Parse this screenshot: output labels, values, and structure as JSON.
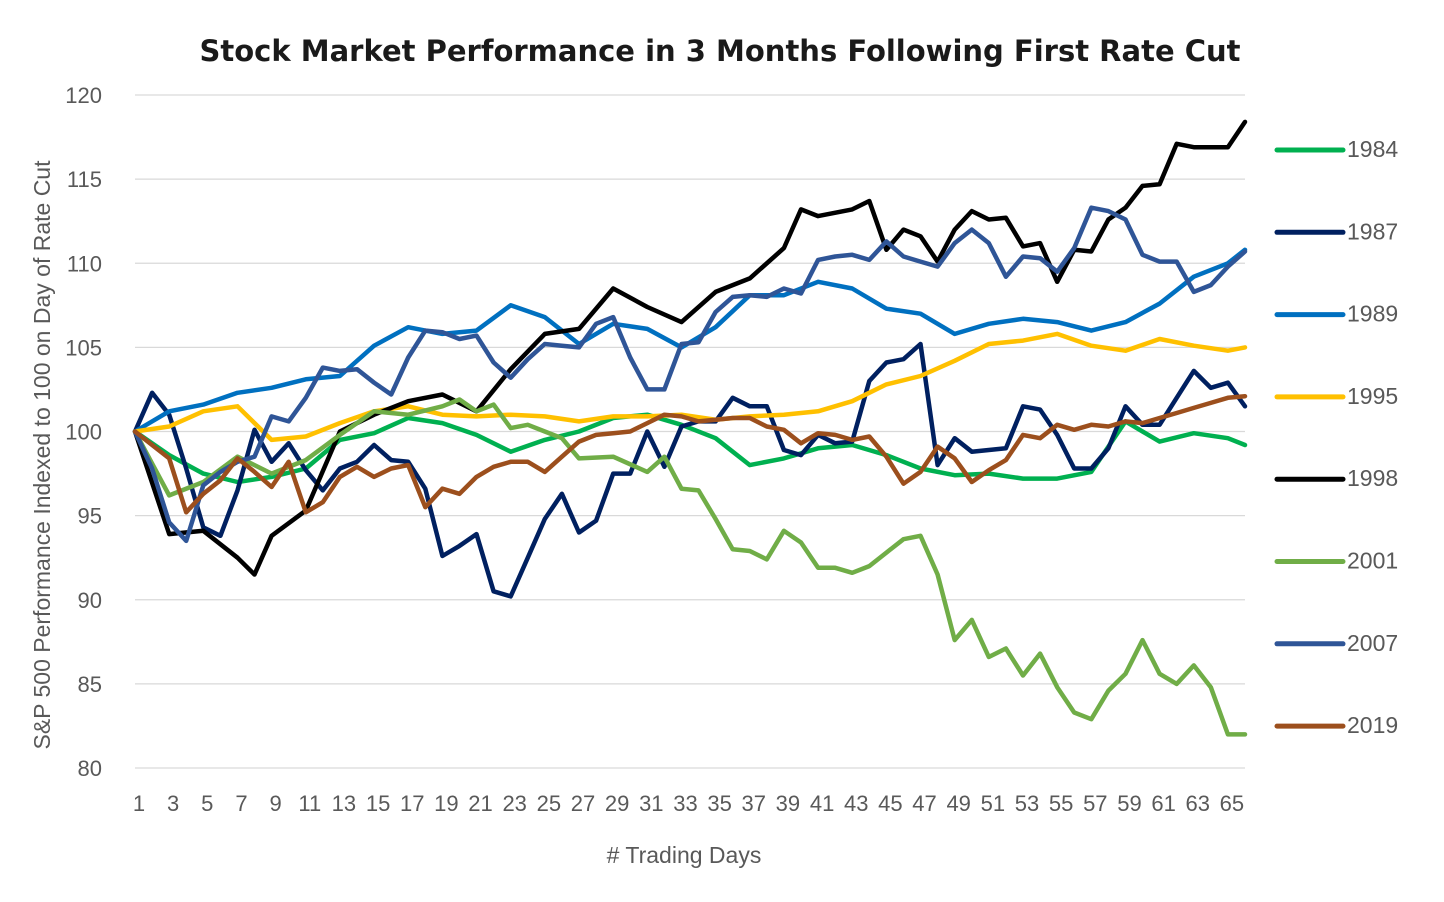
{
  "chart_data": {
    "type": "line",
    "title": "Stock Market Performance in 3 Months Following First Rate Cut",
    "xlabel": "# Trading Days",
    "ylabel": "S&P 500 Performance Indexed to 100 on Day of Rate Cut",
    "ylim": [
      80,
      120
    ],
    "yticks": [
      "120",
      "115",
      "110",
      "105",
      "100",
      "95",
      "90",
      "85",
      "80"
    ],
    "xlim": [
      1,
      66
    ],
    "xticks": [
      "1",
      "3",
      "5",
      "7",
      "9",
      "11",
      "13",
      "15",
      "17",
      "19",
      "21",
      "23",
      "25",
      "27",
      "29",
      "31",
      "33",
      "35",
      "37",
      "39",
      "41",
      "43",
      "45",
      "47",
      "49",
      "51",
      "53",
      "55",
      "57",
      "59",
      "61",
      "63",
      "65"
    ],
    "grid": true,
    "legend_position": "right",
    "series": [
      {
        "name": "1984",
        "color": "#00b050",
        "x": [
          1,
          3,
          5,
          7,
          9,
          11,
          13,
          15,
          17,
          19,
          21,
          23,
          25,
          27,
          29,
          31,
          33,
          35,
          37,
          39,
          41,
          43,
          45,
          47,
          49,
          51,
          53,
          55,
          57,
          59,
          61,
          63,
          65,
          66
        ],
        "values": [
          100,
          98.6,
          97.5,
          97.0,
          97.3,
          97.8,
          99.5,
          99.9,
          100.8,
          100.5,
          99.8,
          98.8,
          99.5,
          100.0,
          100.8,
          101.0,
          100.4,
          99.6,
          98.0,
          98.4,
          99.0,
          99.2,
          98.6,
          97.8,
          97.4,
          97.5,
          97.2,
          97.2,
          97.6,
          100.6,
          99.4,
          99.9,
          99.6,
          99.2
        ]
      },
      {
        "name": "1987",
        "color": "#002060",
        "x": [
          1,
          2,
          3,
          4,
          5,
          6,
          7,
          8,
          9,
          10,
          11,
          12,
          13,
          14,
          15,
          16,
          17,
          18,
          19,
          20,
          21,
          22,
          23,
          24,
          25,
          26,
          27,
          28,
          29,
          30,
          31,
          32,
          33,
          34,
          35,
          36,
          37,
          38,
          39,
          40,
          41,
          42,
          43,
          44,
          45,
          46,
          47,
          48,
          49,
          50,
          51,
          52,
          53,
          54,
          55,
          56,
          57,
          58,
          59,
          60,
          61,
          62,
          63,
          64,
          65,
          66
        ],
        "values": [
          100,
          102.3,
          101,
          97.8,
          94.3,
          93.8,
          96.5,
          100.1,
          98.2,
          99.3,
          97.7,
          96.5,
          97.8,
          98.2,
          99.2,
          98.3,
          98.2,
          96.6,
          92.6,
          93.2,
          93.9,
          90.5,
          90.2,
          92.5,
          94.8,
          96.3,
          94.0,
          94.7,
          97.5,
          97.5,
          100.0,
          97.9,
          100.3,
          100.6,
          100.6,
          102.0,
          101.5,
          101.5,
          98.9,
          98.6,
          99.8,
          99.3,
          99.4,
          103.0,
          104.1,
          104.3,
          105.2,
          98.0,
          99.6,
          98.8,
          98.9,
          99.0,
          101.5,
          101.3,
          99.8,
          97.8,
          97.8,
          99.0,
          101.5,
          100.4,
          100.4,
          102.0,
          103.6,
          102.6,
          102.9,
          101.5
        ]
      },
      {
        "name": "1989",
        "color": "#0070c0",
        "x": [
          1,
          3,
          5,
          7,
          9,
          11,
          13,
          15,
          17,
          19,
          21,
          23,
          25,
          27,
          29,
          31,
          33,
          35,
          37,
          39,
          41,
          43,
          45,
          47,
          49,
          51,
          53,
          55,
          57,
          59,
          61,
          63,
          65,
          66
        ],
        "values": [
          100,
          101.2,
          101.6,
          102.3,
          102.6,
          103.1,
          103.3,
          105.1,
          106.2,
          105.8,
          106.0,
          107.5,
          106.8,
          105.2,
          106.4,
          106.1,
          105.0,
          106.2,
          108.1,
          108.1,
          108.9,
          108.5,
          107.3,
          107.0,
          105.8,
          106.4,
          106.7,
          106.5,
          106.0,
          106.5,
          107.6,
          109.2,
          110.0,
          110.8
        ]
      },
      {
        "name": "1995",
        "color": "#ffc000",
        "x": [
          1,
          3,
          5,
          7,
          9,
          11,
          13,
          15,
          17,
          19,
          21,
          23,
          25,
          27,
          29,
          31,
          33,
          35,
          37,
          39,
          41,
          43,
          45,
          47,
          49,
          51,
          53,
          55,
          57,
          59,
          61,
          63,
          65,
          66
        ],
        "values": [
          100,
          100.3,
          101.2,
          101.5,
          99.5,
          99.7,
          100.5,
          101.2,
          101.5,
          101.0,
          100.9,
          101.0,
          100.9,
          100.6,
          100.9,
          100.9,
          101.0,
          100.7,
          100.9,
          101.0,
          101.2,
          101.8,
          102.8,
          103.3,
          104.2,
          105.2,
          105.4,
          105.8,
          105.1,
          104.8,
          105.5,
          105.1,
          104.8,
          105.0
        ]
      },
      {
        "name": "1998",
        "color": "#000000",
        "x": [
          1,
          3,
          5,
          7,
          8,
          9,
          11,
          13,
          15,
          17,
          19,
          21,
          23,
          25,
          27,
          29,
          31,
          33,
          35,
          37,
          39,
          40,
          41,
          43,
          44,
          45,
          46,
          47,
          48,
          49,
          50,
          51,
          52,
          53,
          54,
          55,
          56,
          57,
          58,
          59,
          60,
          61,
          62,
          63,
          64,
          65,
          66
        ],
        "values": [
          100,
          93.9,
          94.1,
          92.5,
          91.5,
          93.8,
          95.3,
          100.0,
          101.0,
          101.8,
          102.2,
          101.2,
          103.7,
          105.8,
          106.1,
          108.5,
          107.4,
          106.5,
          108.3,
          109.1,
          110.9,
          113.2,
          112.8,
          113.2,
          113.7,
          110.8,
          112.0,
          111.6,
          110.1,
          112.0,
          113.1,
          112.6,
          112.7,
          111.0,
          111.2,
          108.9,
          110.8,
          110.7,
          112.6,
          113.3,
          114.6,
          114.7,
          117.1,
          116.9,
          116.9,
          116.9,
          118.4
        ]
      },
      {
        "name": "2001",
        "color": "#70ad47",
        "x": [
          1,
          3,
          5,
          7,
          9,
          11,
          13,
          15,
          17,
          19,
          20,
          21,
          22,
          23,
          24,
          25,
          26,
          27,
          29,
          31,
          32,
          33,
          34,
          35,
          36,
          37,
          38,
          39,
          40,
          41,
          42,
          43,
          44,
          45,
          46,
          47,
          48,
          49,
          50,
          51,
          52,
          53,
          54,
          55,
          56,
          57,
          58,
          59,
          60,
          61,
          62,
          63,
          64,
          65,
          66
        ],
        "values": [
          100,
          96.2,
          97.0,
          98.5,
          97.5,
          98.3,
          99.8,
          101.2,
          101.0,
          101.5,
          101.9,
          101.2,
          101.6,
          100.2,
          100.4,
          100.0,
          99.6,
          98.4,
          98.5,
          97.6,
          98.5,
          96.6,
          96.5,
          94.8,
          93.0,
          92.9,
          92.4,
          94.1,
          93.4,
          91.9,
          91.9,
          91.6,
          92.0,
          92.8,
          93.6,
          93.8,
          91.5,
          87.6,
          88.8,
          86.6,
          87.1,
          85.5,
          86.8,
          84.8,
          83.3,
          82.9,
          84.6,
          85.6,
          87.6,
          85.6,
          85.0,
          86.1,
          84.8,
          82.0,
          82.0
        ]
      },
      {
        "name": "2007",
        "color": "#2f5597",
        "x": [
          1,
          2,
          3,
          4,
          5,
          6,
          7,
          8,
          9,
          10,
          11,
          12,
          13,
          14,
          15,
          16,
          17,
          18,
          19,
          20,
          21,
          22,
          23,
          24,
          25,
          26,
          27,
          28,
          29,
          30,
          31,
          32,
          33,
          34,
          35,
          36,
          37,
          38,
          39,
          40,
          41,
          42,
          43,
          44,
          45,
          46,
          47,
          48,
          49,
          50,
          51,
          52,
          53,
          54,
          55,
          56,
          57,
          58,
          59,
          60,
          61,
          62,
          63,
          64,
          65,
          66
        ],
        "values": [
          100,
          97.8,
          94.6,
          93.5,
          96.8,
          97.6,
          98.2,
          98.5,
          100.9,
          100.6,
          102.0,
          103.8,
          103.6,
          103.7,
          102.9,
          102.2,
          104.4,
          106.0,
          105.9,
          105.5,
          105.7,
          104.1,
          103.2,
          104.3,
          105.2,
          105.1,
          105.0,
          106.4,
          106.8,
          104.4,
          102.5,
          102.5,
          105.2,
          105.3,
          107.1,
          108.0,
          108.1,
          108.0,
          108.5,
          108.2,
          110.2,
          110.4,
          110.5,
          110.2,
          111.3,
          110.4,
          110.1,
          109.8,
          111.2,
          112.0,
          111.2,
          109.2,
          110.4,
          110.3,
          109.5,
          110.9,
          113.3,
          113.1,
          112.6,
          110.5,
          110.1,
          110.1,
          108.3,
          108.7,
          109.8,
          110.7
        ]
      },
      {
        "name": "2019",
        "color": "#9c4f1d",
        "x": [
          1,
          2,
          3,
          4,
          5,
          6,
          7,
          8,
          9,
          10,
          11,
          12,
          13,
          14,
          15,
          16,
          17,
          18,
          19,
          20,
          21,
          22,
          23,
          24,
          25,
          26,
          27,
          28,
          29,
          30,
          31,
          32,
          33,
          34,
          35,
          36,
          37,
          38,
          39,
          40,
          41,
          42,
          43,
          44,
          45,
          46,
          47,
          48,
          49,
          50,
          51,
          52,
          53,
          54,
          55,
          56,
          57,
          58,
          59,
          60,
          61,
          62,
          63,
          64,
          65,
          66
        ],
        "values": [
          100,
          99.2,
          98.4,
          95.2,
          96.3,
          97.1,
          98.4,
          97.6,
          96.7,
          98.2,
          95.2,
          95.8,
          97.3,
          97.9,
          97.3,
          97.8,
          98.0,
          95.5,
          96.6,
          96.3,
          97.3,
          97.9,
          98.2,
          98.2,
          97.6,
          98.5,
          99.4,
          99.8,
          99.9,
          100.0,
          100.5,
          101.0,
          100.9,
          100.6,
          100.7,
          100.8,
          100.8,
          100.3,
          100.1,
          99.3,
          99.9,
          99.8,
          99.5,
          99.7,
          98.5,
          96.9,
          97.6,
          99.1,
          98.4,
          97.0,
          97.7,
          98.3,
          99.8,
          99.6,
          100.4,
          100.1,
          100.4,
          100.3,
          100.6,
          100.5,
          100.8,
          101.1,
          101.4,
          101.7,
          102.0,
          102.1
        ]
      }
    ]
  }
}
